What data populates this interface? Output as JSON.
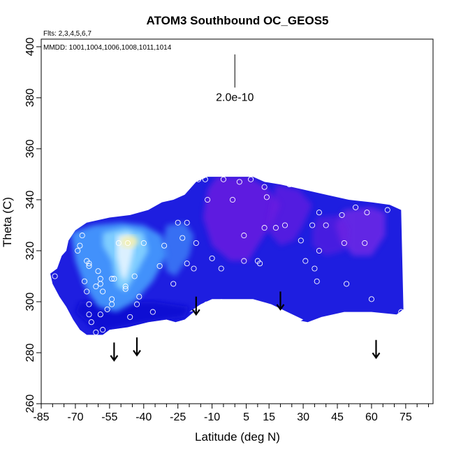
{
  "chart_data": {
    "type": "heatmap",
    "title": "ATOM3 Southbound OC_GEOS5",
    "flights_label": "Flts: 2,3,4,5,6,7",
    "mmdd_label": "MMDD: 1001,1004,1006,1008,1011,1014",
    "xlabel": "Latitude (deg N)",
    "ylabel": "Theta (C)",
    "xlim": [
      -85,
      87
    ],
    "ylim": [
      260,
      403
    ],
    "x_tick_labels": [
      "-85",
      "-70",
      "-55",
      "-40",
      "-25",
      "-10",
      "5",
      "15",
      "30",
      "45",
      "60",
      "75"
    ],
    "x_ticks": [
      -85,
      -70,
      -55,
      -40,
      -25,
      -10,
      5,
      15,
      30,
      45,
      60,
      75
    ],
    "y_tick_labels": [
      "260",
      "280",
      "300",
      "320",
      "340",
      "360",
      "380",
      "400"
    ],
    "y_ticks": [
      260,
      280,
      300,
      320,
      340,
      360,
      380,
      400
    ],
    "scale_bar": {
      "label": "2.0e-10",
      "lat": 0,
      "theta_top": 397,
      "theta_bottom": 384
    },
    "colors": {
      "base_blue": "#1e1ee0",
      "deep_blue": "#0a0ad2",
      "violet": "#6a1ee0",
      "purple": "#7a2ae6",
      "light_blue": "#4aa6ff",
      "cyan": "#8ad8ff",
      "pale": "#e6f4ff",
      "yellow": "#f3efb0",
      "points": "#ffffff",
      "arrows": "#000000"
    },
    "observation_points": [
      [
        -67,
        326
      ],
      [
        -68,
        322
      ],
      [
        -69,
        320
      ],
      [
        -65,
        316
      ],
      [
        -64,
        315
      ],
      [
        -64,
        314
      ],
      [
        -66,
        308
      ],
      [
        -60,
        312
      ],
      [
        -59,
        309
      ],
      [
        -59,
        307
      ],
      [
        -61,
        306
      ],
      [
        -54,
        309
      ],
      [
        -53,
        309
      ],
      [
        -48,
        306
      ],
      [
        -48,
        305
      ],
      [
        -44,
        310
      ],
      [
        -42,
        302
      ],
      [
        -43,
        299
      ],
      [
        -54,
        301
      ],
      [
        -54,
        299
      ],
      [
        -56,
        297
      ],
      [
        -59,
        295
      ],
      [
        -58,
        289
      ],
      [
        -61,
        288
      ],
      [
        -64,
        299
      ],
      [
        -65,
        304
      ],
      [
        -58,
        304
      ],
      [
        -79,
        310
      ],
      [
        -63,
        292
      ],
      [
        -64,
        295
      ],
      [
        -46,
        294
      ],
      [
        -36,
        296
      ],
      [
        -51,
        323
      ],
      [
        -47,
        323
      ],
      [
        -40,
        323
      ],
      [
        -33,
        314
      ],
      [
        -31,
        322
      ],
      [
        -21,
        315
      ],
      [
        -27,
        307
      ],
      [
        -25,
        331
      ],
      [
        -21,
        331
      ],
      [
        -23,
        325
      ],
      [
        -16,
        348
      ],
      [
        -13,
        348
      ],
      [
        -5,
        348
      ],
      [
        -1,
        340
      ],
      [
        2,
        347
      ],
      [
        7,
        348
      ],
      [
        -12,
        340
      ],
      [
        -17,
        323
      ],
      [
        -18,
        313
      ],
      [
        -10,
        317
      ],
      [
        -6,
        313
      ],
      [
        4,
        316
      ],
      [
        4,
        326
      ],
      [
        10,
        316
      ],
      [
        11,
        315
      ],
      [
        13,
        345
      ],
      [
        14,
        341
      ],
      [
        13,
        329
      ],
      [
        18,
        329
      ],
      [
        22,
        330
      ],
      [
        24,
        346
      ],
      [
        29,
        324
      ],
      [
        31,
        316
      ],
      [
        34,
        330
      ],
      [
        37,
        335
      ],
      [
        36,
        308
      ],
      [
        35,
        313
      ],
      [
        37,
        320
      ],
      [
        40,
        330
      ],
      [
        47,
        334
      ],
      [
        48,
        323
      ],
      [
        49,
        307
      ],
      [
        53,
        337
      ],
      [
        57,
        323
      ],
      [
        58,
        335
      ],
      [
        60,
        301
      ],
      [
        67,
        336
      ],
      [
        73,
        296
      ]
    ],
    "flight_arrows": [
      {
        "lat": -53,
        "theta_from": 284,
        "theta_to": 277
      },
      {
        "lat": -43,
        "theta_from": 286,
        "theta_to": 279
      },
      {
        "lat": -17,
        "theta_from": 302,
        "theta_to": 295
      },
      {
        "lat": 20,
        "theta_from": 304,
        "theta_to": 297
      },
      {
        "lat": 62,
        "theta_from": 285,
        "theta_to": 278
      }
    ],
    "field_outline": [
      [
        -81,
        311
      ],
      [
        -78,
        313
      ],
      [
        -76,
        318
      ],
      [
        -74,
        320
      ],
      [
        -73,
        324
      ],
      [
        -70,
        328
      ],
      [
        -65,
        331
      ],
      [
        -55,
        333
      ],
      [
        -46,
        334
      ],
      [
        -38,
        336
      ],
      [
        -32,
        339
      ],
      [
        -27,
        340
      ],
      [
        -22,
        342
      ],
      [
        -17,
        347
      ],
      [
        -12,
        349
      ],
      [
        -2,
        349
      ],
      [
        8,
        349
      ],
      [
        13,
        347
      ],
      [
        20,
        346
      ],
      [
        30,
        344
      ],
      [
        40,
        342
      ],
      [
        50,
        340
      ],
      [
        60,
        339
      ],
      [
        68,
        338
      ],
      [
        73,
        336
      ],
      [
        74,
        297
      ],
      [
        71,
        295
      ],
      [
        60,
        296
      ],
      [
        48,
        296
      ],
      [
        38,
        294
      ],
      [
        32,
        292
      ],
      [
        26,
        293
      ],
      [
        20,
        296
      ],
      [
        13,
        299
      ],
      [
        5,
        300
      ],
      [
        -6,
        301
      ],
      [
        -13,
        300
      ],
      [
        -18,
        296
      ],
      [
        -22,
        293
      ],
      [
        -26,
        292
      ],
      [
        -30,
        293
      ],
      [
        -38,
        292
      ],
      [
        -47,
        290
      ],
      [
        -55,
        289
      ],
      [
        -58,
        287
      ],
      [
        -60,
        287
      ],
      [
        -65,
        287
      ],
      [
        -68,
        289
      ],
      [
        -71,
        293
      ],
      [
        -74,
        298
      ],
      [
        -77,
        302
      ],
      [
        -80,
        307
      ]
    ],
    "white_gap": [
      [
        -20,
        296
      ],
      [
        -15,
        299
      ],
      [
        -10,
        301
      ],
      [
        0,
        301
      ],
      [
        8,
        301
      ],
      [
        16,
        299
      ],
      [
        23,
        296
      ],
      [
        30,
        293
      ],
      [
        28,
        292
      ],
      [
        20,
        295
      ],
      [
        12,
        298
      ],
      [
        0,
        300
      ],
      [
        -10,
        300
      ],
      [
        -16,
        297
      ]
    ],
    "subregions": [
      {
        "name": "violet-core",
        "color_key": "violet",
        "opacity": 0.85,
        "points": [
          [
            -8,
            349
          ],
          [
            6,
            349
          ],
          [
            14,
            345
          ],
          [
            20,
            338
          ],
          [
            16,
            330
          ],
          [
            10,
            322
          ],
          [
            6,
            316
          ],
          [
            -2,
            316
          ],
          [
            -10,
            322
          ],
          [
            -14,
            333
          ],
          [
            -12,
            344
          ]
        ]
      },
      {
        "name": "violet-east-band",
        "color_key": "violet",
        "opacity": 0.7,
        "points": [
          [
            18,
            346
          ],
          [
            28,
            344
          ],
          [
            34,
            338
          ],
          [
            30,
            330
          ],
          [
            26,
            324
          ],
          [
            20,
            322
          ],
          [
            14,
            328
          ],
          [
            16,
            338
          ]
        ]
      },
      {
        "name": "purple-right",
        "color_key": "purple",
        "opacity": 0.75,
        "points": [
          [
            48,
            336
          ],
          [
            60,
            337
          ],
          [
            66,
            335
          ],
          [
            66,
            326
          ],
          [
            60,
            318
          ],
          [
            52,
            318
          ],
          [
            46,
            324
          ],
          [
            44,
            330
          ]
        ]
      },
      {
        "name": "purple-right-lower",
        "color_key": "violet",
        "opacity": 0.55,
        "points": [
          [
            36,
            333
          ],
          [
            46,
            334
          ],
          [
            50,
            328
          ],
          [
            48,
            320
          ],
          [
            40,
            318
          ],
          [
            34,
            322
          ],
          [
            34,
            328
          ]
        ]
      },
      {
        "name": "deep-blue-floor",
        "color_key": "deep_blue",
        "opacity": 0.9,
        "points": [
          [
            -70,
            296
          ],
          [
            -60,
            288
          ],
          [
            -45,
            291
          ],
          [
            -30,
            293
          ],
          [
            -22,
            294
          ],
          [
            -20,
            298
          ],
          [
            -35,
            300
          ],
          [
            -55,
            300
          ],
          [
            -68,
            300
          ]
        ]
      },
      {
        "name": "light-blue-left",
        "color_key": "light_blue",
        "opacity": 0.85,
        "points": [
          [
            -72,
            327
          ],
          [
            -62,
            330
          ],
          [
            -50,
            331
          ],
          [
            -40,
            330
          ],
          [
            -32,
            326
          ],
          [
            -30,
            318
          ],
          [
            -36,
            308
          ],
          [
            -44,
            300
          ],
          [
            -52,
            296
          ],
          [
            -60,
            298
          ],
          [
            -66,
            306
          ],
          [
            -70,
            316
          ]
        ]
      },
      {
        "name": "cyan-left",
        "color_key": "cyan",
        "opacity": 0.85,
        "points": [
          [
            -58,
            327
          ],
          [
            -48,
            329
          ],
          [
            -40,
            327
          ],
          [
            -38,
            320
          ],
          [
            -44,
            310
          ],
          [
            -48,
            304
          ],
          [
            -52,
            306
          ],
          [
            -54,
            316
          ],
          [
            -58,
            322
          ]
        ]
      },
      {
        "name": "light-blue-mid",
        "color_key": "light_blue",
        "opacity": 0.6,
        "points": [
          [
            -30,
            330
          ],
          [
            -22,
            331
          ],
          [
            -18,
            326
          ],
          [
            -20,
            318
          ],
          [
            -26,
            310
          ],
          [
            -30,
            312
          ],
          [
            -32,
            322
          ]
        ]
      },
      {
        "name": "pale-streak",
        "color_key": "pale",
        "opacity": 0.9,
        "points": [
          [
            -52,
            326
          ],
          [
            -46,
            327
          ],
          [
            -44,
            322
          ],
          [
            -46,
            314
          ],
          [
            -48,
            308
          ],
          [
            -50,
            310
          ],
          [
            -52,
            318
          ]
        ]
      },
      {
        "name": "yellow-spot",
        "color_key": "yellow",
        "opacity": 0.95,
        "points": [
          [
            -50,
            325
          ],
          [
            -44,
            326
          ],
          [
            -42,
            323
          ],
          [
            -46,
            321
          ],
          [
            -50,
            322
          ]
        ]
      }
    ]
  }
}
